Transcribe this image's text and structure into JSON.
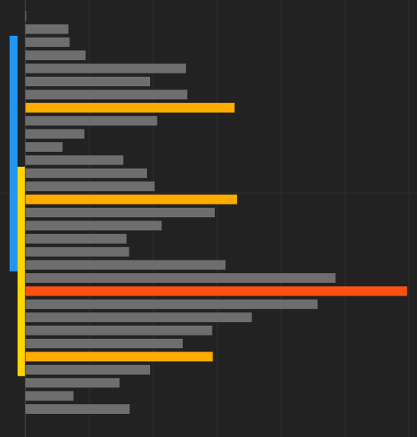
{
  "chart_data": {
    "type": "bar",
    "orientation": "horizontal",
    "title": "",
    "xlabel": "",
    "ylabel": "",
    "xlim": [
      0,
      600
    ],
    "grid": true,
    "legend": "none",
    "values": [
      1,
      67,
      69,
      94,
      251,
      195,
      253,
      327,
      206,
      92,
      58,
      153,
      190,
      202,
      331,
      296,
      213,
      158,
      162,
      313,
      485,
      597,
      457,
      354,
      292,
      246,
      293,
      195,
      147,
      75,
      163
    ],
    "bar_colors": [
      "#6e6e6e",
      "#6e6e6e",
      "#6e6e6e",
      "#6e6e6e",
      "#6e6e6e",
      "#6e6e6e",
      "#6e6e6e",
      "#ffab00",
      "#6e6e6e",
      "#6e6e6e",
      "#6e6e6e",
      "#6e6e6e",
      "#6e6e6e",
      "#6e6e6e",
      "#ffab00",
      "#6e6e6e",
      "#6e6e6e",
      "#6e6e6e",
      "#6e6e6e",
      "#6e6e6e",
      "#6e6e6e",
      "#ff5212",
      "#6e6e6e",
      "#6e6e6e",
      "#6e6e6e",
      "#6e6e6e",
      "#ffab00",
      "#6e6e6e",
      "#6e6e6e",
      "#6e6e6e",
      "#6e6e6e"
    ],
    "range_markers": [
      {
        "from": 2,
        "to": 19,
        "color": "#2196f3"
      },
      {
        "from": 12,
        "to": 27,
        "color": "#ffd600"
      }
    ],
    "colors": {
      "background": "#222222",
      "grid": "#303030",
      "axis": "#4a4a4a",
      "default_bar": "#6e6e6e",
      "highlight": "#ffab00",
      "peak": "#ff5212"
    }
  }
}
